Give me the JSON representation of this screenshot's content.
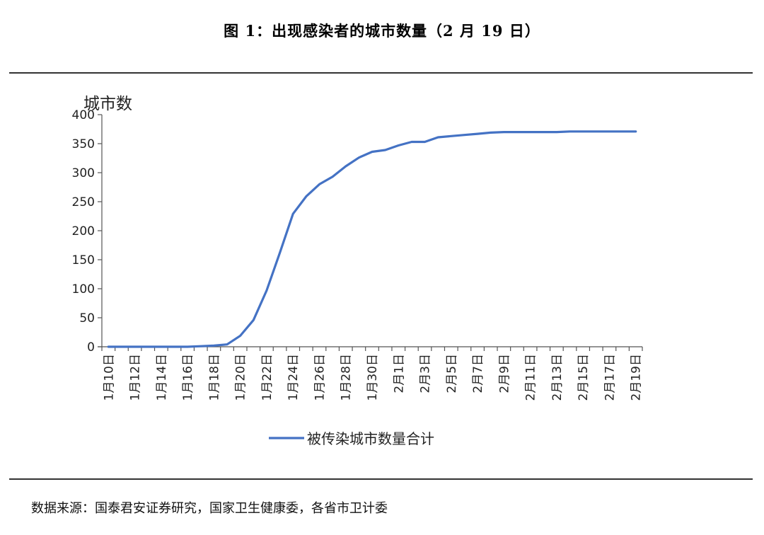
{
  "figure": {
    "title": "图 1：出现感染者的城市数量（2 月 19 日）",
    "source": "数据来源：国泰君安证券研究，国家卫生健康委，各省市卫计委"
  },
  "chart_data": {
    "type": "line",
    "title": "图 1：出现感染者的城市数量（2 月 19 日）",
    "xlabel": "",
    "ylabel": "城市数",
    "ylim": [
      0,
      400
    ],
    "yticks": [
      0,
      50,
      100,
      150,
      200,
      250,
      300,
      350,
      400
    ],
    "grid": false,
    "legend_position": "bottom",
    "x": [
      "1月10日",
      "1月11日",
      "1月12日",
      "1月13日",
      "1月14日",
      "1月15日",
      "1月16日",
      "1月17日",
      "1月18日",
      "1月19日",
      "1月20日",
      "1月21日",
      "1月22日",
      "1月23日",
      "1月24日",
      "1月25日",
      "1月26日",
      "1月27日",
      "1月28日",
      "1月29日",
      "1月30日",
      "1月31日",
      "2月1日",
      "2月2日",
      "2月3日",
      "2月4日",
      "2月5日",
      "2月6日",
      "2月7日",
      "2月8日",
      "2月9日",
      "2月10日",
      "2月11日",
      "2月12日",
      "2月13日",
      "2月14日",
      "2月15日",
      "2月16日",
      "2月17日",
      "2月18日",
      "2月19日"
    ],
    "x_tick_labels": [
      "1月10日",
      "1月12日",
      "1月14日",
      "1月16日",
      "1月18日",
      "1月20日",
      "1月22日",
      "1月24日",
      "1月26日",
      "1月28日",
      "1月30日",
      "2月1日",
      "2月3日",
      "2月5日",
      "2月7日",
      "2月9日",
      "2月11日",
      "2月13日",
      "2月15日",
      "2月17日",
      "2月19日"
    ],
    "series": [
      {
        "name": "被传染城市数量合计",
        "color": "#4472c4",
        "values": [
          0,
          0,
          0,
          0,
          0,
          0,
          0,
          1,
          2,
          4,
          19,
          46,
          97,
          162,
          229,
          259,
          280,
          293,
          311,
          326,
          336,
          339,
          347,
          353,
          353,
          361,
          363,
          365,
          367,
          369,
          370,
          370,
          370,
          370,
          370,
          371,
          371,
          371,
          371,
          371,
          371
        ]
      }
    ]
  }
}
